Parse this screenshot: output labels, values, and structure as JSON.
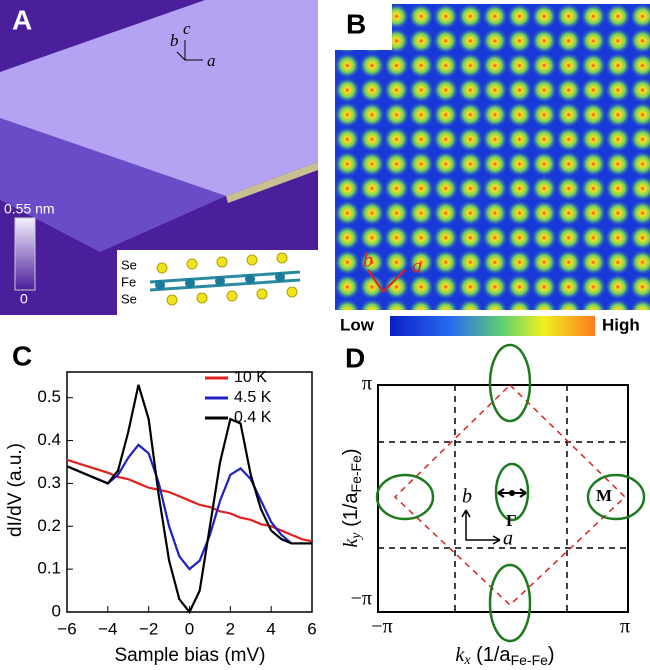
{
  "panels": {
    "a": {
      "letter": "A",
      "axes": [
        "b",
        "c",
        "a"
      ],
      "scale_max": "0.55 nm",
      "scale_min": "0",
      "layers": [
        "Se",
        "Fe",
        "Se"
      ]
    },
    "b": {
      "letter": "B",
      "axes": [
        "b",
        "a"
      ],
      "low": "Low",
      "high": "High"
    },
    "d": {
      "letter": "D",
      "ticks": [
        "π",
        "−π",
        "−π",
        "π"
      ],
      "axes": [
        "b",
        "a"
      ],
      "gamma": "Γ",
      "m": "M",
      "ylabel": {
        "k": "k",
        "sub": "y",
        "unit": " (1/a",
        "unit_sub": "Fe-Fe",
        "close": ")"
      },
      "xlabel": {
        "k": "k",
        "sub": "x",
        "unit": " (1/a",
        "unit_sub": "Fe-Fe",
        "close": ")"
      }
    }
  },
  "chart_data": {
    "type": "line",
    "letter": "C",
    "xlabel": "Sample bias (mV)",
    "ylabel": "dI/dV (a.u.)",
    "x": [
      -6,
      -5,
      -4,
      -3.5,
      -3,
      -2.5,
      -2,
      -1.5,
      -1,
      -0.5,
      0,
      0.5,
      1,
      1.5,
      2,
      2.5,
      3,
      3.5,
      4,
      4.5,
      5,
      5.5,
      6
    ],
    "series": [
      {
        "name": "10 K",
        "color": "#e32020",
        "values": [
          0.355,
          0.34,
          0.325,
          0.315,
          0.31,
          0.3,
          0.29,
          0.285,
          0.28,
          0.27,
          0.26,
          0.25,
          0.245,
          0.235,
          0.23,
          0.22,
          0.215,
          0.205,
          0.2,
          0.19,
          0.18,
          0.17,
          0.165
        ]
      },
      {
        "name": "4.5 K",
        "color": "#1f1fc8",
        "values": [
          0.34,
          0.32,
          0.3,
          0.32,
          0.36,
          0.39,
          0.37,
          0.3,
          0.2,
          0.13,
          0.1,
          0.12,
          0.18,
          0.26,
          0.32,
          0.335,
          0.31,
          0.26,
          0.21,
          0.18,
          0.16,
          0.16,
          0.16
        ]
      },
      {
        "name": "0.4 K",
        "color": "#000000",
        "values": [
          0.34,
          0.32,
          0.3,
          0.33,
          0.42,
          0.53,
          0.45,
          0.27,
          0.12,
          0.03,
          0.0,
          0.05,
          0.2,
          0.35,
          0.45,
          0.44,
          0.32,
          0.24,
          0.19,
          0.17,
          0.16,
          0.16,
          0.16
        ]
      }
    ],
    "xlim": [
      -6,
      6
    ],
    "ylim": [
      0,
      0.56
    ],
    "xticks": [
      {
        "value": -6,
        "label": "−6"
      },
      {
        "value": -4,
        "label": "−4"
      },
      {
        "value": -2,
        "label": "−2"
      },
      0,
      2,
      4,
      6
    ],
    "yticks": [
      0,
      0.1,
      0.2,
      0.3,
      0.4,
      0.5
    ]
  }
}
